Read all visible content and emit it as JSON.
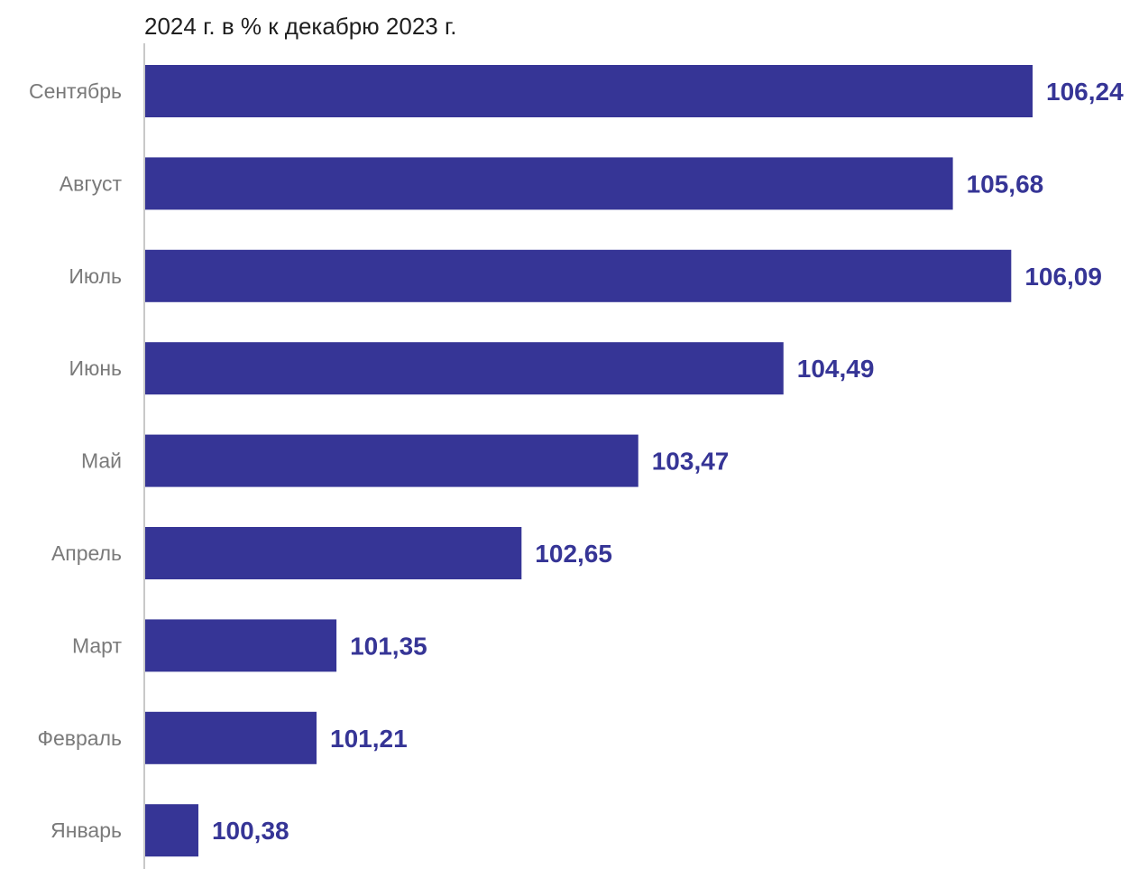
{
  "chart_data": {
    "type": "bar",
    "orientation": "horizontal",
    "title": "2024 г. в % к декабрю 2023 г.",
    "categories": [
      "Сентябрь",
      "Август",
      "Июль",
      "Июнь",
      "Май",
      "Апрель",
      "Март",
      "Февраль",
      "Январь"
    ],
    "values": [
      106.24,
      105.68,
      106.09,
      104.49,
      103.47,
      102.65,
      101.35,
      101.21,
      100.38
    ],
    "value_labels": [
      "106,24",
      "105,68",
      "106,09",
      "104,49",
      "103,47",
      "102,65",
      "101,35",
      "101,21",
      "100,38"
    ],
    "xlim": [
      100,
      106.24
    ],
    "grid": false,
    "legend": "none",
    "bar_color": "#363596",
    "label_color": "#363596",
    "axis_color": "#c8c8c8"
  }
}
